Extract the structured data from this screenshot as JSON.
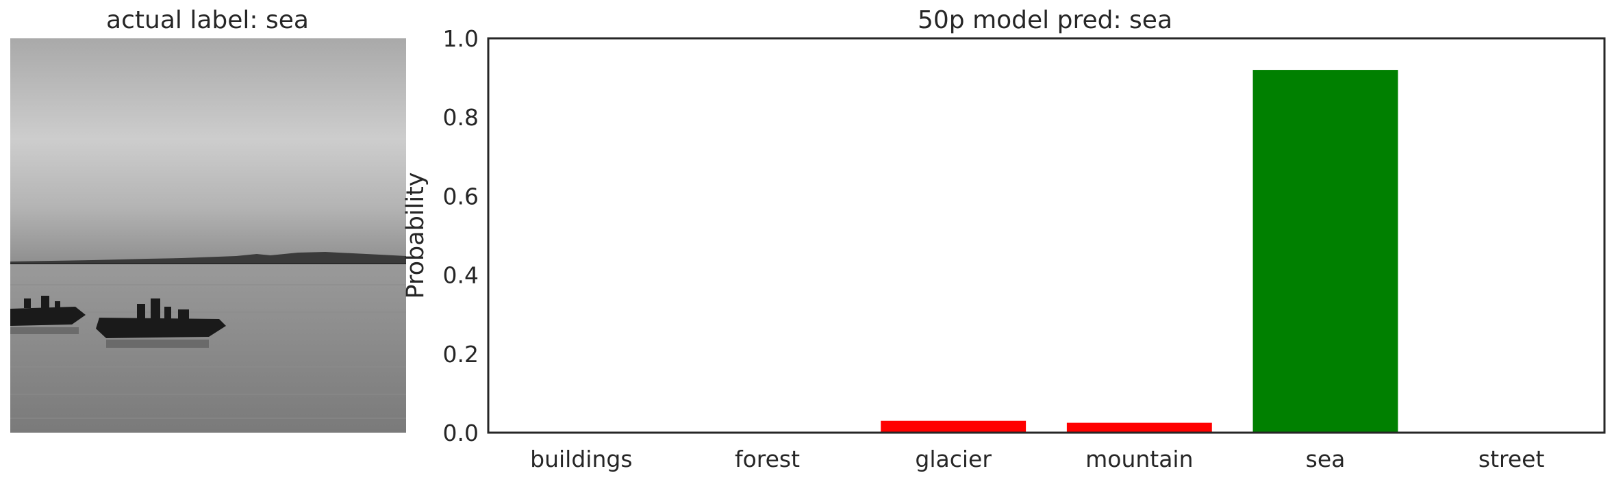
{
  "left_panel": {
    "title": "actual label: sea",
    "image_description": "grayscale photo of boats on the sea at dusk with a distant shoreline"
  },
  "chart_data": {
    "type": "bar",
    "title": "50p model pred: sea",
    "xlabel": "",
    "ylabel": "Probability",
    "categories": [
      "buildings",
      "forest",
      "glacier",
      "mountain",
      "sea",
      "street"
    ],
    "values": [
      0.0,
      0.0,
      0.03,
      0.025,
      0.92,
      0.0
    ],
    "ylim": [
      0,
      1.0
    ],
    "yticks": [
      "0.0",
      "0.2",
      "0.4",
      "0.6",
      "0.8",
      "1.0"
    ],
    "colors": {
      "predicted": "#008000",
      "other": "#ff0000",
      "axis": "#262626"
    },
    "grid": false,
    "legend": "none"
  }
}
